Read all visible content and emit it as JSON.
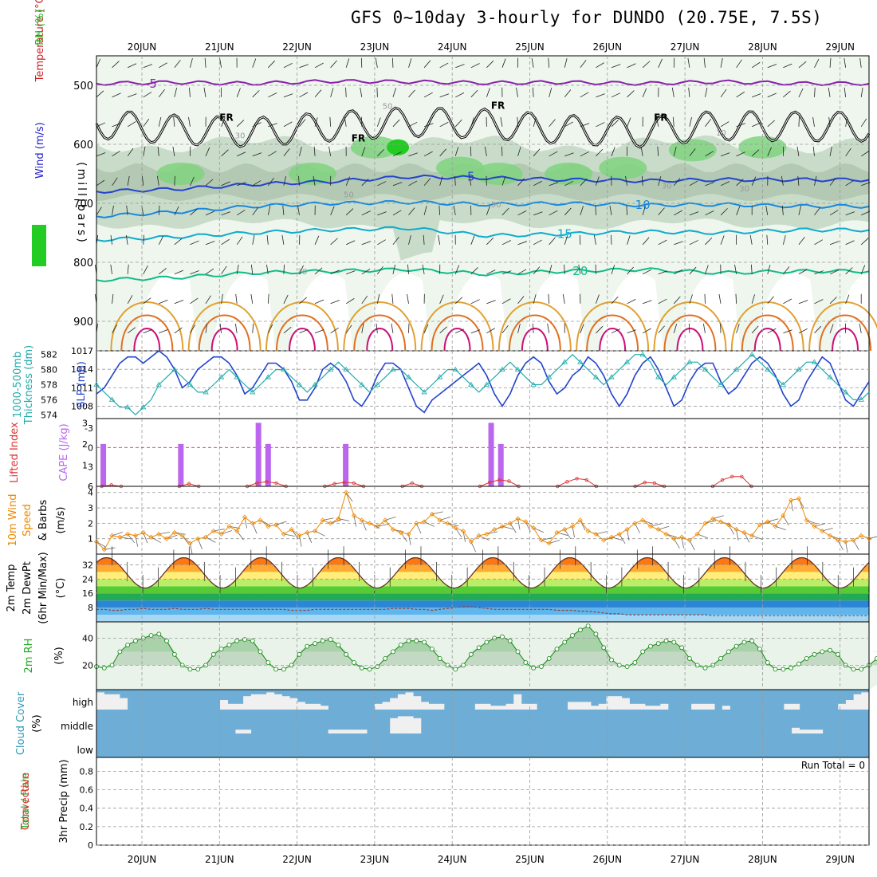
{
  "title": "GFS 0~10day 3-hourly for DUNDO (20.75E, 7.5S)",
  "chart_data": [
    {
      "id": "upper",
      "type": "heatmap",
      "ylabel_parts": [
        {
          "text": "RH (%)",
          "color": "#22bb22"
        },
        {
          "text": "Temperature (°C)",
          "color": "#cc2222"
        },
        {
          "text": "Wind (m/s)",
          "color": "#2222cc"
        }
      ],
      "ylabel2": "(millibars)",
      "y_ticks": [
        500,
        600,
        700,
        800,
        900
      ],
      "ylim": [
        450,
        950
      ],
      "x_ticks": [
        "20JUN",
        "21JUN",
        "22JUN",
        "23JUN",
        "24JUN",
        "25JUN",
        "26JUN",
        "27JUN",
        "28JUN",
        "29JUN"
      ],
      "rh_labels": [
        "30",
        "50",
        "50",
        "50",
        "30",
        "30",
        "10",
        "30"
      ],
      "temperature_isotherms": [
        {
          "label": "-5",
          "color": "#8822aa",
          "levels": [
            497,
            495,
            497,
            493,
            494,
            496,
            495,
            497,
            494,
            497
          ]
        },
        {
          "label": "5",
          "color": "#2244cc",
          "levels": [
            680,
            676,
            668,
            663,
            655,
            657,
            660,
            662,
            660,
            660
          ]
        },
        {
          "label": "10",
          "color": "#1a88dd",
          "levels": [
            722,
            715,
            705,
            700,
            698,
            702,
            700,
            703,
            702,
            705
          ]
        },
        {
          "label": "15",
          "color": "#11aacc",
          "levels": [
            762,
            757,
            750,
            745,
            742,
            755,
            752,
            748,
            750,
            745
          ]
        },
        {
          "label": "20",
          "color": "#11bb88",
          "levels": [
            830,
            826,
            818,
            815,
            812,
            820,
            815,
            812,
            818,
            815
          ]
        }
      ],
      "freezing_level": {
        "label": "FR",
        "levels": [
          565,
          575,
          580,
          570,
          562,
          565,
          575,
          580,
          568,
          570
        ]
      }
    },
    {
      "id": "pressure",
      "type": "line",
      "ylabel_parts": [
        {
          "text": "1000-500mb",
          "color": "#22aaaa"
        },
        {
          "text": "Thickness (dm)",
          "color": "#22aaaa"
        },
        {
          "text": "SLP (mb)",
          "color": "#2244cc"
        }
      ],
      "left_ticks": [
        574,
        576,
        578,
        580,
        582
      ],
      "right_ticks": [
        1008,
        1011,
        1014,
        1017
      ],
      "series": [
        {
          "name": "SLP",
          "color": "#2244cc",
          "values": [
            1010,
            1011,
            1013,
            1015,
            1016,
            1016,
            1015,
            1016,
            1017,
            1016,
            1014,
            1011,
            1012,
            1014,
            1015,
            1016,
            1016,
            1015,
            1013,
            1010,
            1011,
            1013,
            1015,
            1015,
            1014,
            1012,
            1009,
            1009,
            1011,
            1014,
            1015,
            1014,
            1012,
            1009,
            1008,
            1010,
            1013,
            1015,
            1015,
            1014,
            1011,
            1008,
            1007,
            1009,
            1010,
            1011,
            1012,
            1013,
            1014,
            1015,
            1013,
            1010,
            1008,
            1010,
            1013,
            1015,
            1016,
            1015,
            1012,
            1010,
            1011,
            1013,
            1014,
            1016,
            1015,
            1013,
            1010,
            1008,
            1010,
            1013,
            1015,
            1016,
            1014,
            1011,
            1008,
            1009,
            1012,
            1014,
            1015,
            1015,
            1012,
            1010,
            1011,
            1013,
            1015,
            1016,
            1015,
            1013,
            1010,
            1008,
            1009,
            1012,
            1014,
            1016,
            1015,
            1012,
            1009,
            1008,
            1010,
            1012
          ]
        },
        {
          "name": "Thickness",
          "color": "#22aaaa",
          "values": [
            578,
            577,
            576,
            575,
            575,
            574,
            575,
            576,
            578,
            579,
            580,
            579,
            578,
            577,
            577,
            578,
            579,
            580,
            579,
            578,
            577,
            578,
            579,
            580,
            580,
            579,
            578,
            577,
            578,
            579,
            580,
            581,
            580,
            579,
            578,
            577,
            578,
            579,
            580,
            580,
            579,
            578,
            577,
            578,
            579,
            580,
            580,
            579,
            578,
            577,
            578,
            579,
            580,
            581,
            580,
            579,
            578,
            578,
            579,
            580,
            581,
            582,
            581,
            580,
            579,
            578,
            579,
            580,
            581,
            582,
            582,
            581,
            579,
            578,
            579,
            580,
            581,
            581,
            580,
            579,
            578,
            579,
            580,
            581,
            582,
            581,
            580,
            579,
            578,
            579,
            580,
            581,
            581,
            580,
            579,
            578,
            577,
            576,
            576,
            577
          ]
        }
      ]
    },
    {
      "id": "cape",
      "type": "bar",
      "ylabel_parts": [
        {
          "text": "Lifted Index",
          "color": "#dd3333"
        },
        {
          "text": "CAPE (J/kg)",
          "color": "#bb66ee"
        }
      ],
      "left_ticks": [
        "-3",
        "0",
        "3",
        "6"
      ],
      "right_ticks": [
        1,
        2,
        3
      ],
      "cape_bars": [
        {
          "day": 0.0,
          "value": 2
        },
        {
          "day": 1.0,
          "value": 2
        },
        {
          "day": 2.0,
          "value": 3
        },
        {
          "day": 2.125,
          "value": 2
        },
        {
          "day": 3.125,
          "value": 2
        },
        {
          "day": 5.0,
          "value": 3
        },
        {
          "day": 5.125,
          "value": 2
        }
      ],
      "lifted_index": [
        {
          "start": 0.0,
          "values": [
            6,
            5.8,
            6
          ]
        },
        {
          "start": 1.0,
          "values": [
            6,
            5.6,
            6
          ]
        },
        {
          "start": 1.875,
          "values": [
            6,
            5.5,
            5.3,
            5.5,
            6
          ]
        },
        {
          "start": 2.875,
          "values": [
            6,
            5.6,
            5.4,
            5.5,
            6
          ]
        },
        {
          "start": 3.875,
          "values": [
            6,
            5.5,
            6
          ]
        },
        {
          "start": 4.875,
          "values": [
            6,
            5.4,
            5.0,
            5.2,
            6
          ]
        },
        {
          "start": 5.875,
          "values": [
            6,
            5.3,
            4.8,
            5.0,
            6
          ]
        },
        {
          "start": 6.875,
          "values": [
            6,
            5.4,
            5.5,
            6
          ]
        },
        {
          "start": 7.875,
          "values": [
            6,
            5.0,
            4.5,
            4.5,
            6
          ]
        }
      ]
    },
    {
      "id": "wind",
      "type": "line",
      "ylabel_parts": [
        {
          "text": "10m Wind",
          "color": "#ee8800"
        },
        {
          "text": "Speed",
          "color": "#ee8800"
        },
        {
          "text": "& Barbs",
          "color": "#000000"
        },
        {
          "text": "(m/s)",
          "color": "#000000"
        }
      ],
      "left_ticks": [
        1,
        2,
        3,
        4
      ],
      "series": [
        {
          "name": "10m Wind Speed",
          "color": "#ee8800",
          "values": [
            0.8,
            0.3,
            1.2,
            1.1,
            1.3,
            1.2,
            1.4,
            1.1,
            1.3,
            1.0,
            1.4,
            1.2,
            0.7,
            1.0,
            1.1,
            1.5,
            1.3,
            1.8,
            1.5,
            2.4,
            2.0,
            2.2,
            1.8,
            1.9,
            1.3,
            1.6,
            1.2,
            1.4,
            1.5,
            2.2,
            2.0,
            2.3,
            4.0,
            2.5,
            2.2,
            2.0,
            1.8,
            2.2,
            1.6,
            1.4,
            1.3,
            2.0,
            2.1,
            2.6,
            2.2,
            2.0,
            1.7,
            1.5,
            0.8,
            1.2,
            1.3,
            1.6,
            1.8,
            2.0,
            2.3,
            2.1,
            1.7,
            0.9,
            0.7,
            1.4,
            1.6,
            1.8,
            2.2,
            1.5,
            1.3,
            0.9,
            1.1,
            1.3,
            1.6,
            2.0,
            2.2,
            1.8,
            1.6,
            1.3,
            1.0,
            1.1,
            0.9,
            1.3,
            2.0,
            2.3,
            2.1,
            1.9,
            1.6,
            1.4,
            1.2,
            1.9,
            2.1,
            1.8,
            2.5,
            3.5,
            3.6,
            2.2,
            1.8,
            1.5,
            1.2,
            0.9,
            0.8,
            0.9,
            1.2,
            1.0
          ]
        }
      ]
    },
    {
      "id": "temp",
      "type": "area",
      "ylabel_parts": [
        {
          "text": "2m Temp",
          "color": "#000000"
        },
        {
          "text": "2m DewPt",
          "color": "#000000"
        },
        {
          "text": "(6hr Min/Max)",
          "color": "#000000"
        },
        {
          "text": "(°C)",
          "color": "#000000"
        }
      ],
      "left_ticks": [
        8,
        16,
        24,
        32
      ],
      "temperature_daily": {
        "min": 19,
        "max": 36
      },
      "dewpoint": [
        7,
        7,
        6.5,
        6.5,
        7,
        7,
        7.5,
        7,
        7,
        7,
        7.5,
        7,
        7,
        7,
        7.5,
        7,
        7,
        7,
        7,
        7,
        7,
        7,
        7,
        7,
        7,
        6.5,
        6.5,
        6.5,
        7,
        7,
        7,
        7,
        7,
        7,
        7,
        7,
        7,
        7,
        7.5,
        7.5,
        7.5,
        7,
        7,
        6.5,
        7,
        7.5,
        8,
        8.5,
        8.5,
        8,
        7.5,
        7,
        7,
        7,
        7,
        7,
        7,
        7,
        7,
        6.5,
        6.5,
        6.5,
        6,
        6,
        5.5,
        5,
        4.5,
        4.5,
        4,
        4,
        4,
        4,
        4,
        4,
        4,
        4,
        4,
        4,
        4,
        3.5,
        3.5,
        3.5,
        3.5,
        3.5,
        3.5,
        3.5,
        3.5,
        3.5,
        3.5,
        3.5,
        3.5,
        3.5,
        3.5,
        3.5,
        3.5,
        3.5,
        3.5,
        3.5,
        3.5,
        3.5
      ]
    },
    {
      "id": "rh",
      "type": "area",
      "ylabel_parts": [
        {
          "text": "2m RH",
          "color": "#22aa22"
        },
        {
          "text": "(%)",
          "color": "#000000"
        }
      ],
      "left_ticks": [
        20,
        40
      ],
      "series": [
        {
          "name": "2m RH",
          "color": "#118811",
          "values": [
            19,
            18,
            20,
            30,
            35,
            38,
            40,
            42,
            43,
            38,
            28,
            20,
            17,
            17,
            20,
            28,
            32,
            35,
            38,
            39,
            38,
            30,
            22,
            17,
            17,
            20,
            28,
            34,
            36,
            38,
            39,
            35,
            28,
            22,
            18,
            17,
            19,
            25,
            30,
            35,
            38,
            38,
            37,
            32,
            25,
            20,
            17,
            20,
            28,
            33,
            37,
            40,
            41,
            38,
            30,
            22,
            18,
            19,
            25,
            32,
            37,
            42,
            46,
            49,
            43,
            33,
            24,
            20,
            19,
            22,
            30,
            34,
            36,
            38,
            37,
            33,
            25,
            20,
            18,
            20,
            25,
            30,
            34,
            37,
            38,
            32,
            22,
            17,
            17,
            18,
            21,
            25,
            28,
            30,
            31,
            28,
            20,
            17,
            17,
            20,
            25,
            30,
            33,
            35,
            31
          ]
        }
      ]
    },
    {
      "id": "cloud",
      "type": "heatmap",
      "ylabel_parts": [
        {
          "text": "Cloud Cover",
          "color": "#3399bb"
        },
        {
          "text": "(%)",
          "color": "#000000"
        }
      ],
      "rows": [
        "high",
        "middle",
        "low"
      ],
      "high": [
        0.9,
        0.8,
        0.8,
        0.6,
        0,
        0,
        0,
        0,
        0,
        0,
        0,
        0,
        0,
        0,
        0,
        0,
        0.5,
        0.3,
        0.3,
        0.7,
        0.8,
        0.8,
        0.9,
        0.8,
        0.7,
        0.6,
        0.4,
        0.3,
        0.3,
        0.2,
        0,
        0,
        0,
        0,
        0,
        0,
        0.3,
        0.4,
        0.6,
        0.8,
        0.9,
        0.7,
        0.4,
        0.3,
        0.3,
        0,
        0,
        0,
        0,
        0.3,
        0.3,
        0.2,
        0.2,
        0.3,
        0.8,
        0.3,
        0.3,
        0,
        0,
        0,
        0,
        0.4,
        0.4,
        0.4,
        0.2,
        0.3,
        0.7,
        0.7,
        0.6,
        0.3,
        0.3,
        0.2,
        0.2,
        0.3,
        0,
        0,
        0,
        0.3,
        0.3,
        0.3,
        0,
        0.2,
        0,
        0,
        0,
        0,
        0,
        0,
        0,
        0.3,
        0.3,
        0,
        0,
        0,
        0,
        0,
        0.3,
        0.5,
        0.8,
        0.9
      ],
      "middle": [
        0,
        0,
        0,
        0,
        0,
        0,
        0,
        0,
        0,
        0,
        0,
        0,
        0,
        0,
        0,
        0,
        0,
        0,
        0.2,
        0.2,
        0,
        0,
        0,
        0,
        0,
        0,
        0,
        0,
        0,
        0,
        0.2,
        0.2,
        0.2,
        0.2,
        0.2,
        0,
        0,
        0,
        0.8,
        0.9,
        0.9,
        0.8,
        0,
        0,
        0,
        0,
        0,
        0,
        0,
        0,
        0,
        0,
        0,
        0,
        0,
        0,
        0,
        0,
        0,
        0,
        0,
        0,
        0,
        0,
        0,
        0,
        0,
        0,
        0,
        0,
        0,
        0,
        0,
        0,
        0,
        0,
        0,
        0,
        0,
        0,
        0,
        0,
        0,
        0,
        0,
        0,
        0,
        0,
        0,
        0,
        0.3,
        0.2,
        0.2,
        0.2,
        0,
        0,
        0,
        0,
        0,
        0
      ],
      "low": []
    },
    {
      "id": "precip",
      "type": "bar",
      "ylabel_parts": [
        {
          "text": "Total / Rain",
          "color": "#22aa22"
        },
        {
          "text": "Convective",
          "color": "#dd3333"
        },
        {
          "text": "3hr Precip (mm)",
          "color": "#000000"
        }
      ],
      "left_ticks": [
        "0",
        "0.2",
        "0.4",
        "0.6",
        "0.8"
      ],
      "run_total_label": "Run Total = 0",
      "values": []
    }
  ]
}
